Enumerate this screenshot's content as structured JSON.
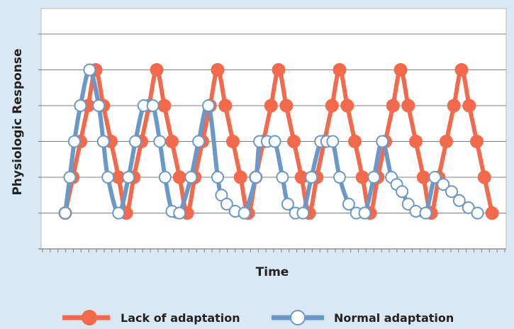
{
  "chart_data": {
    "type": "line",
    "title": "",
    "xlabel": "Time",
    "ylabel": "Physiologic Response",
    "ylim": [
      0,
      6
    ],
    "x_ticks_count": 60,
    "grid": "horizontal",
    "legend_position": "bottom",
    "colors": {
      "background": "#dae8f4",
      "plot_area": "#ffffff",
      "gridline": "#7f7f7f",
      "lack": "#f26a4b",
      "normal": "#6a98c8"
    },
    "series": [
      {
        "name": "Lack of adaptation",
        "marker": "filled",
        "points": [
          [
            0,
            1.0
          ],
          [
            1,
            2.0
          ],
          [
            2,
            3.0
          ],
          [
            3,
            4.0
          ],
          [
            4,
            5.0
          ],
          [
            5,
            4.0
          ],
          [
            6,
            3.0
          ],
          [
            7,
            2.0
          ],
          [
            8,
            1.0
          ],
          [
            9,
            2.0
          ],
          [
            10,
            3.0
          ],
          [
            11,
            4.0
          ],
          [
            12,
            5.0
          ],
          [
            13,
            4.0
          ],
          [
            14,
            3.0
          ],
          [
            15,
            2.0
          ],
          [
            16,
            1.0
          ],
          [
            17,
            2.0
          ],
          [
            18,
            3.0
          ],
          [
            19,
            4.0
          ],
          [
            20,
            5.0
          ],
          [
            21,
            4.0
          ],
          [
            22,
            3.0
          ],
          [
            23,
            2.0
          ],
          [
            24,
            1.0
          ],
          [
            25,
            2.0
          ],
          [
            26,
            3.0
          ],
          [
            27,
            4.0
          ],
          [
            28,
            5.0
          ],
          [
            29,
            4.0
          ],
          [
            30,
            3.0
          ],
          [
            31,
            2.0
          ],
          [
            32,
            1.0
          ],
          [
            33,
            2.0
          ],
          [
            34,
            3.0
          ],
          [
            35,
            4.0
          ],
          [
            36,
            5.0
          ],
          [
            37,
            4.0
          ],
          [
            38,
            3.0
          ],
          [
            39,
            2.0
          ],
          [
            40,
            1.0
          ],
          [
            41,
            2.0
          ],
          [
            42,
            3.0
          ],
          [
            43,
            4.0
          ],
          [
            44,
            5.0
          ],
          [
            45,
            4.0
          ],
          [
            46,
            3.0
          ],
          [
            47,
            2.0
          ],
          [
            48,
            1.0
          ],
          [
            49,
            2.0
          ],
          [
            50,
            3.0
          ],
          [
            51,
            4.0
          ],
          [
            52,
            5.0
          ],
          [
            53,
            4.0
          ],
          [
            54,
            3.0
          ],
          [
            55,
            2.0
          ],
          [
            56,
            1.0
          ]
        ]
      },
      {
        "name": "Normal adaptation",
        "marker": "hollow",
        "points": [
          [
            0,
            1.0
          ],
          [
            0.6,
            2.0
          ],
          [
            1.2,
            3.0
          ],
          [
            2,
            4.0
          ],
          [
            3.2,
            5.0
          ],
          [
            4.4,
            4.0
          ],
          [
            5,
            3.0
          ],
          [
            5.6,
            2.0
          ],
          [
            7,
            1.0
          ],
          [
            8.3,
            2.0
          ],
          [
            9.2,
            3.0
          ],
          [
            10.3,
            4.0
          ],
          [
            11.5,
            4.0
          ],
          [
            12.4,
            3.0
          ],
          [
            13.1,
            2.0
          ],
          [
            14,
            1.05
          ],
          [
            15,
            1.0
          ],
          [
            16.5,
            2.0
          ],
          [
            17.5,
            3.0
          ],
          [
            18.8,
            4.0
          ],
          [
            20,
            2.0
          ],
          [
            20.5,
            1.5
          ],
          [
            21.2,
            1.25
          ],
          [
            22.3,
            1.05
          ],
          [
            23.5,
            1.0
          ],
          [
            25,
            2.0
          ],
          [
            25.5,
            3.0
          ],
          [
            26.5,
            3.0
          ],
          [
            27.5,
            3.0
          ],
          [
            28.5,
            2.0
          ],
          [
            29.2,
            1.25
          ],
          [
            30.2,
            1.0
          ],
          [
            31.2,
            1.0
          ],
          [
            32.3,
            2.0
          ],
          [
            33.5,
            3.0
          ],
          [
            34.3,
            3.0
          ],
          [
            35.1,
            3.0
          ],
          [
            36,
            2.0
          ],
          [
            37.2,
            1.25
          ],
          [
            38.2,
            1.0
          ],
          [
            39.3,
            1.0
          ],
          [
            40.5,
            2.0
          ],
          [
            41.6,
            3.0
          ],
          [
            42.8,
            2.0
          ],
          [
            43.5,
            1.8
          ],
          [
            44.2,
            1.6
          ],
          [
            45,
            1.25
          ],
          [
            46,
            1.05
          ],
          [
            47.3,
            1.0
          ],
          [
            48.5,
            2.0
          ],
          [
            49.6,
            1.8
          ],
          [
            50.7,
            1.6
          ],
          [
            51.7,
            1.35
          ],
          [
            52.9,
            1.15
          ],
          [
            54.1,
            1.0
          ]
        ]
      }
    ]
  }
}
